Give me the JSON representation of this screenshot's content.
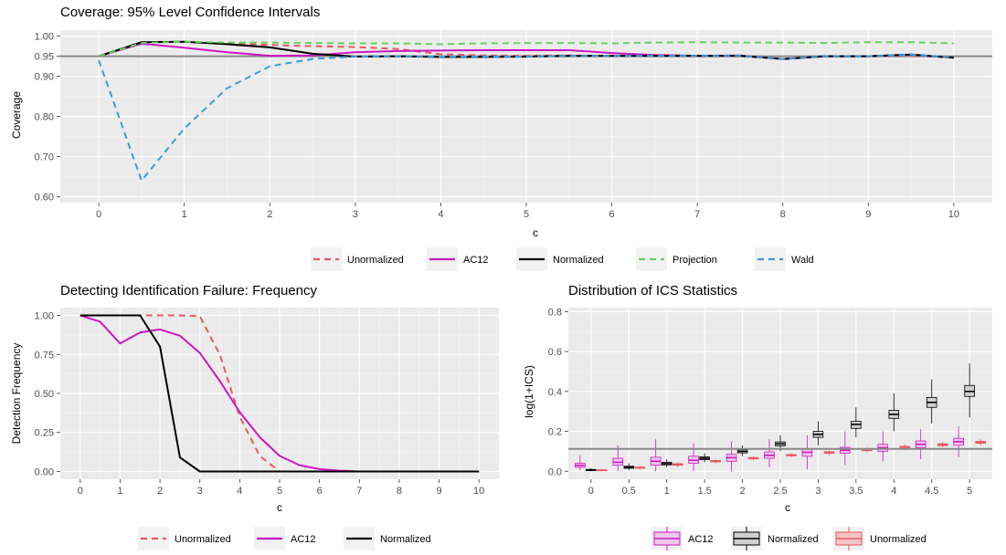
{
  "chart_data": [
    {
      "id": "coverage",
      "type": "line",
      "title": "Coverage: 95% Level Confidence Intervals",
      "xlabel": "c",
      "ylabel": "Coverage",
      "xlim": [
        -0.45,
        10.45
      ],
      "ylim": [
        0.585,
        1.015
      ],
      "x_ticks": [
        0,
        1,
        2,
        3,
        4,
        5,
        6,
        7,
        8,
        9,
        10
      ],
      "x_tick_labels": [
        "0",
        "1",
        "2",
        "3",
        "4",
        "5",
        "6",
        "7",
        "8",
        "9",
        "10"
      ],
      "y_ticks": [
        0.6,
        0.7,
        0.8,
        0.9,
        0.95,
        1.0
      ],
      "y_tick_labels": [
        "0.60",
        "0.70",
        "0.80",
        "0.90",
        "0.95",
        "1.00"
      ],
      "reference_line": 0.95,
      "grid": true,
      "legend_position": "bottom",
      "x": [
        0,
        0.5,
        1,
        1.5,
        2,
        2.5,
        3,
        3.5,
        4,
        4.5,
        5,
        5.5,
        6,
        6.5,
        7,
        7.5,
        8,
        8.5,
        9,
        9.5,
        10
      ],
      "series": [
        {
          "name": "Unormalized",
          "color": "#e8585f",
          "dash": "dashed",
          "values": [
            0.95,
            0.985,
            0.986,
            0.983,
            0.978,
            0.975,
            0.973,
            0.968,
            0.955,
            0.952,
            0.951,
            0.952,
            0.951,
            0.951,
            0.95,
            0.95,
            0.943,
            0.95,
            0.95,
            0.952,
            0.947
          ]
        },
        {
          "name": "AC12",
          "color": "#cc16c4",
          "dash": "solid",
          "values": [
            0.95,
            0.981,
            0.971,
            0.96,
            0.951,
            0.952,
            0.96,
            0.963,
            0.964,
            0.965,
            0.965,
            0.965,
            0.958,
            0.953,
            0.951,
            0.952,
            0.943,
            0.95,
            0.95,
            0.954,
            0.946
          ]
        },
        {
          "name": "Normalized",
          "color": "#000000",
          "dash": "solid",
          "values": [
            0.95,
            0.985,
            0.986,
            0.98,
            0.972,
            0.956,
            0.949,
            0.95,
            0.948,
            0.948,
            0.949,
            0.951,
            0.951,
            0.951,
            0.951,
            0.951,
            0.943,
            0.95,
            0.95,
            0.954,
            0.946
          ]
        },
        {
          "name": "Projection",
          "color": "#5fd35a",
          "dash": "dashed",
          "values": [
            0.95,
            0.983,
            0.986,
            0.984,
            0.984,
            0.983,
            0.982,
            0.982,
            0.98,
            0.982,
            0.983,
            0.983,
            0.982,
            0.984,
            0.985,
            0.984,
            0.984,
            0.983,
            0.985,
            0.985,
            0.982
          ]
        },
        {
          "name": "Wald",
          "color": "#3a9bdc",
          "dash": "dashed",
          "values": [
            0.94,
            0.64,
            0.77,
            0.87,
            0.925,
            0.943,
            0.949,
            0.95,
            0.949,
            0.949,
            0.949,
            0.951,
            0.951,
            0.951,
            0.951,
            0.951,
            0.943,
            0.95,
            0.95,
            0.954,
            0.946
          ]
        }
      ]
    },
    {
      "id": "frequency",
      "type": "line",
      "title": "Detecting Identification Failure: Frequency",
      "xlabel": "c",
      "ylabel": "Detection Frequency",
      "xlim": [
        -0.5,
        10.5
      ],
      "ylim": [
        -0.05,
        1.05
      ],
      "x_ticks": [
        0,
        1,
        2,
        3,
        4,
        5,
        6,
        7,
        8,
        9,
        10
      ],
      "x_tick_labels": [
        "0",
        "1",
        "2",
        "3",
        "4",
        "5",
        "6",
        "7",
        "8",
        "9",
        "10"
      ],
      "y_ticks": [
        0,
        0.25,
        0.5,
        0.75,
        1.0
      ],
      "y_tick_labels": [
        "0.00",
        "0.25",
        "0.50",
        "0.75",
        "1.00"
      ],
      "grid": true,
      "legend_position": "bottom",
      "x": [
        0,
        0.5,
        1,
        1.5,
        2,
        2.5,
        3,
        3.5,
        4,
        4.5,
        5,
        5.5,
        6,
        6.5,
        7,
        7.5,
        8,
        8.5,
        9,
        9.5,
        10
      ],
      "series": [
        {
          "name": "Unormalized",
          "color": "#e8585f",
          "dash": "dashed",
          "values": [
            1.0,
            1.0,
            1.0,
            1.0,
            1.0,
            1.0,
            0.995,
            0.75,
            0.35,
            0.1,
            0.0,
            0.0,
            0.0,
            0.0,
            0.0,
            0.0,
            0.0,
            0.0,
            0.0,
            0.0,
            0.0
          ]
        },
        {
          "name": "AC12",
          "color": "#cc16c4",
          "dash": "solid",
          "values": [
            1.0,
            0.96,
            0.82,
            0.89,
            0.91,
            0.87,
            0.76,
            0.58,
            0.38,
            0.22,
            0.1,
            0.04,
            0.015,
            0.005,
            0.0,
            0.0,
            0.0,
            0.0,
            0.0,
            0.0,
            0.0
          ]
        },
        {
          "name": "Normalized",
          "color": "#000000",
          "dash": "solid",
          "values": [
            1.0,
            1.0,
            1.0,
            1.0,
            0.8,
            0.09,
            0.0,
            0.0,
            0.0,
            0.0,
            0.0,
            0.0,
            0.0,
            0.0,
            0.0,
            0.0,
            0.0,
            0.0,
            0.0,
            0.0,
            0.0
          ]
        }
      ]
    },
    {
      "id": "ics",
      "type": "boxplot",
      "title": "Distribution of ICS Statistics",
      "xlabel": "c",
      "ylabel": "log(1+ICS)",
      "ylim": [
        -0.04,
        0.82
      ],
      "y_ticks": [
        0,
        0.2,
        0.4,
        0.6,
        0.8
      ],
      "y_tick_labels": [
        "0.0",
        "0.2",
        "0.4",
        "0.6",
        "0.8"
      ],
      "reference_line": 0.112,
      "grid": true,
      "legend_position": "bottom",
      "categories": [
        "0",
        "0.5",
        "1",
        "1.5",
        "2",
        "2.5",
        "3",
        "3.5",
        "4",
        "4.5",
        "5"
      ],
      "series": [
        {
          "name": "AC12",
          "color": "#cc16c4",
          "fill": "#eec8ec",
          "boxes": [
            [
              0.005,
              0.02,
              0.03,
              0.04,
              0.08
            ],
            [
              0.0,
              0.03,
              0.045,
              0.065,
              0.13
            ],
            [
              0.0,
              0.03,
              0.05,
              0.07,
              0.16
            ],
            [
              0.0,
              0.04,
              0.055,
              0.075,
              0.14
            ],
            [
              0.0,
              0.05,
              0.068,
              0.085,
              0.15
            ],
            [
              0.02,
              0.065,
              0.08,
              0.097,
              0.16
            ],
            [
              0.01,
              0.075,
              0.095,
              0.11,
              0.18
            ],
            [
              0.03,
              0.09,
              0.105,
              0.12,
              0.2
            ],
            [
              0.05,
              0.1,
              0.118,
              0.135,
              0.2
            ],
            [
              0.06,
              0.118,
              0.135,
              0.152,
              0.21
            ],
            [
              0.07,
              0.13,
              0.148,
              0.165,
              0.225
            ]
          ]
        },
        {
          "name": "Normalized",
          "color": "#000000",
          "fill": "#cfcfcf",
          "boxes": [
            [
              0.0,
              0.003,
              0.006,
              0.009,
              0.015
            ],
            [
              0.005,
              0.015,
              0.02,
              0.025,
              0.04
            ],
            [
              0.02,
              0.032,
              0.038,
              0.045,
              0.06
            ],
            [
              0.045,
              0.058,
              0.065,
              0.072,
              0.09
            ],
            [
              0.075,
              0.092,
              0.1,
              0.108,
              0.13
            ],
            [
              0.1,
              0.127,
              0.137,
              0.147,
              0.18
            ],
            [
              0.13,
              0.17,
              0.185,
              0.2,
              0.25
            ],
            [
              0.17,
              0.215,
              0.235,
              0.25,
              0.32
            ],
            [
              0.2,
              0.265,
              0.285,
              0.305,
              0.39
            ],
            [
              0.24,
              0.32,
              0.345,
              0.37,
              0.46
            ],
            [
              0.27,
              0.375,
              0.4,
              0.43,
              0.54
            ]
          ]
        },
        {
          "name": "Unormalized",
          "color": "#e8585f",
          "fill": "#f4c4c6",
          "boxes": [
            [
              0.0,
              0.003,
              0.005,
              0.007,
              0.012
            ],
            [
              0.01,
              0.015,
              0.018,
              0.021,
              0.028
            ],
            [
              0.02,
              0.03,
              0.034,
              0.038,
              0.045
            ],
            [
              0.04,
              0.047,
              0.05,
              0.054,
              0.06
            ],
            [
              0.055,
              0.062,
              0.065,
              0.069,
              0.076
            ],
            [
              0.07,
              0.077,
              0.08,
              0.084,
              0.09
            ],
            [
              0.08,
              0.09,
              0.094,
              0.098,
              0.105
            ],
            [
              0.095,
              0.103,
              0.107,
              0.111,
              0.12
            ],
            [
              0.105,
              0.115,
              0.12,
              0.125,
              0.135
            ],
            [
              0.12,
              0.128,
              0.133,
              0.138,
              0.147
            ],
            [
              0.13,
              0.14,
              0.145,
              0.15,
              0.16
            ]
          ]
        }
      ]
    }
  ]
}
